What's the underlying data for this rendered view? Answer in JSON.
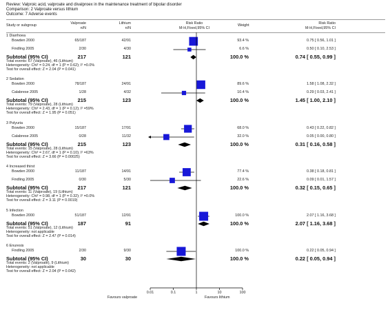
{
  "review_header": {
    "review": "Review:  Valproic acid, valproate and divalproex in the maintenance treatment of bipolar disorder",
    "comparison": "Comparison:  2 Valproate versus lithium",
    "outcome": "Outcome:  7 Adverse events"
  },
  "columns": {
    "study": "Study or subgroup",
    "group1": "Valproate",
    "group1_sub": "n/N",
    "group2": "Lithium",
    "group2_sub": "n/N",
    "plot": "Risk Ratio",
    "plot_sub": "M-H,Fixed,95% CI",
    "weight": "Weight",
    "ratio": "Risk Ratio",
    "ratio_sub": "M-H,Fixed,95% CI"
  },
  "axis": {
    "ticks": [
      "0.01",
      "0.1",
      "1",
      "10",
      "100"
    ],
    "favours_left": "Favours valproate",
    "favours_right": "Favours lithium"
  },
  "chart_data": {
    "type": "forest",
    "scale": "log",
    "xlim": [
      0.01,
      100
    ],
    "subgroups": [
      {
        "title": "1 Diarrhoea",
        "studies": [
          {
            "name": "Bowden 2000",
            "g1": "65/187",
            "g2": "42/91",
            "weight": "93.4 %",
            "ci_text": "0.75 [ 0.56, 1.01 ]",
            "rr": 0.75,
            "lo": 0.56,
            "hi": 1.01
          },
          {
            "name": "Findling 2005",
            "g1": "2/30",
            "g2": "4/30",
            "weight": "6.6 %",
            "ci_text": "0.50 [ 0.10, 2.53 ]",
            "rr": 0.5,
            "lo": 0.1,
            "hi": 2.53
          }
        ],
        "subtotal": {
          "label": "Subtotal (95% CI)",
          "n1": "217",
          "n2": "121",
          "weight": "100.0 %",
          "ci_text": "0.74 [ 0.55, 0.99 ]",
          "rr": 0.74,
          "lo": 0.55,
          "hi": 0.99
        },
        "stats": [
          "Total events: 67 (Valproate), 46 (Lithium)",
          "Heterogeneity: Chi² = 0.24, df = 1 (P = 0.62); I² =0.0%",
          "Test for overall effect: Z = 2.04 (P = 0.041)"
        ]
      },
      {
        "title": "2 Sedation",
        "studies": [
          {
            "name": "Bowden 2000",
            "g1": "78/187",
            "g2": "24/91",
            "weight": "89.6 %",
            "ci_text": "1.58 [ 1.08, 2.32 ]",
            "rr": 1.58,
            "lo": 1.08,
            "hi": 2.32
          },
          {
            "name": "Calabrese 2005",
            "g1": "1/28",
            "g2": "4/32",
            "weight": "10.4 %",
            "ci_text": "0.29 [ 0.03, 2.41 ]",
            "rr": 0.29,
            "lo": 0.03,
            "hi": 2.41
          }
        ],
        "subtotal": {
          "label": "Subtotal (95% CI)",
          "n1": "215",
          "n2": "123",
          "weight": "100.0 %",
          "ci_text": "1.45 [ 1.00, 2.10 ]",
          "rr": 1.45,
          "lo": 1.0,
          "hi": 2.1
        },
        "stats": [
          "Total events: 79 (Valproate), 28 (Lithium)",
          "Heterogeneity: Chi² = 2.43, df = 1 (P = 0.12); I² =59%",
          "Test for overall effect: Z = 1.95 (P = 0.051)"
        ]
      },
      {
        "title": "3 Polyuria",
        "studies": [
          {
            "name": "Bowden 2000",
            "g1": "15/187",
            "g2": "17/91",
            "weight": "68.0 %",
            "ci_text": "0.43 [ 0.22, 0.82 ]",
            "rr": 0.43,
            "lo": 0.22,
            "hi": 0.82
          },
          {
            "name": "Calabrese 2005",
            "g1": "0/28",
            "g2": "11/32",
            "weight": "32.0 %",
            "ci_text": "0.05 [ 0.00, 0.80 ]",
            "rr": 0.05,
            "lo": 0.0,
            "hi": 0.8
          }
        ],
        "subtotal": {
          "label": "Subtotal (95% CI)",
          "n1": "215",
          "n2": "123",
          "weight": "100.0 %",
          "ci_text": "0.31 [ 0.16, 0.58 ]",
          "rr": 0.31,
          "lo": 0.16,
          "hi": 0.58
        },
        "stats": [
          "Total events: 15 (Valproate), 28 (Lithium)",
          "Heterogeneity: Chi² = 2.67, df = 1 (P = 0.10); I² =63%",
          "Test for overall effect: Z = 3.66 (P = 0.00025)"
        ]
      },
      {
        "title": "4 Increased thirst",
        "studies": [
          {
            "name": "Bowden 2000",
            "g1": "11/187",
            "g2": "14/91",
            "weight": "77.4 %",
            "ci_text": "0.38 [ 0.18, 0.81 ]",
            "rr": 0.38,
            "lo": 0.18,
            "hi": 0.81
          },
          {
            "name": "Findling 2005",
            "g1": "0/30",
            "g2": "5/30",
            "weight": "22.6 %",
            "ci_text": "0.09 [ 0.01, 1.57 ]",
            "rr": 0.09,
            "lo": 0.01,
            "hi": 1.57
          }
        ],
        "subtotal": {
          "label": "Subtotal (95% CI)",
          "n1": "217",
          "n2": "121",
          "weight": "100.0 %",
          "ci_text": "0.32 [ 0.15, 0.65 ]",
          "rr": 0.32,
          "lo": 0.15,
          "hi": 0.65
        },
        "stats": [
          "Total events: 11 (Valproate), 19 (Lithium)",
          "Heterogeneity: Chi² = 0.98, df = 1 (P = 0.32); I² =0.0%",
          "Test for overall effect: Z = 3.11 (P = 0.0019)"
        ]
      },
      {
        "title": "5 Infection",
        "studies": [
          {
            "name": "Bowden 2000",
            "g1": "51/187",
            "g2": "12/91",
            "weight": "100.0 %",
            "ci_text": "2.07 [ 1.16, 3.68 ]",
            "rr": 2.07,
            "lo": 1.16,
            "hi": 3.68
          }
        ],
        "subtotal": {
          "label": "Subtotal (95% CI)",
          "n1": "187",
          "n2": "91",
          "weight": "100.0 %",
          "ci_text": "2.07 [ 1.16, 3.68 ]",
          "rr": 2.07,
          "lo": 1.16,
          "hi": 3.68
        },
        "stats": [
          "Total events: 51 (Valproate), 12 (Lithium)",
          "Heterogeneity: not applicable",
          "Test for overall effect: Z = 2.47 (P = 0.014)"
        ]
      },
      {
        "title": "6 Enuresis",
        "studies": [
          {
            "name": "Findling 2005",
            "g1": "2/30",
            "g2": "9/30",
            "weight": "100.0 %",
            "ci_text": "0.22 [ 0.05, 0.94 ]",
            "rr": 0.22,
            "lo": 0.05,
            "hi": 0.94
          }
        ],
        "subtotal": {
          "label": "Subtotal (95% CI)",
          "n1": "30",
          "n2": "30",
          "weight": "100.0 %",
          "ci_text": "0.22 [ 0.05, 0.94 ]",
          "rr": 0.22,
          "lo": 0.05,
          "hi": 0.94
        },
        "stats": [
          "Total events: 2 (Valproate), 9 (Lithium)",
          "Heterogeneity: not applicable",
          "Test for overall effect: Z = 2.04 (P = 0.042)"
        ]
      }
    ]
  }
}
